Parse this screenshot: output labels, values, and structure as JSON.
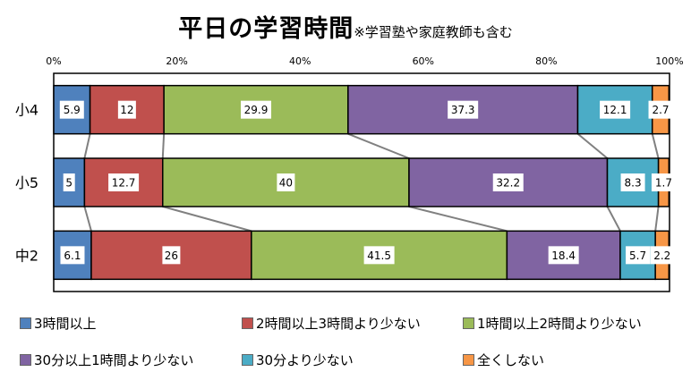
{
  "chart_data": {
    "type": "bar",
    "orientation": "horizontal",
    "stacked": true,
    "percent": true,
    "title": "平日の学習時間",
    "subtitle": "※学習塾や家庭教師も含む",
    "categories": [
      "小4",
      "小5",
      "中2"
    ],
    "xlim": [
      0,
      100
    ],
    "x_ticks": [
      "0%",
      "20%",
      "40%",
      "60%",
      "80%",
      "100%"
    ],
    "x_axis_position": "top",
    "grid": false,
    "legend_position": "bottom",
    "series_connectors": true,
    "series": [
      {
        "name": "3時間以上",
        "color": "#4f81bd",
        "values": [
          5.9,
          5,
          6.1
        ]
      },
      {
        "name": "2時間以上3時間より少ない",
        "color": "#c0504d",
        "values": [
          12,
          12.7,
          26
        ]
      },
      {
        "name": "1時間以上2時間より少ない",
        "color": "#9bbb59",
        "values": [
          29.9,
          40,
          41.5
        ]
      },
      {
        "name": "30分以上1時間より少ない",
        "color": "#8064a2",
        "values": [
          37.3,
          32.2,
          18.4
        ]
      },
      {
        "name": "30分より少ない",
        "color": "#4bacc6",
        "values": [
          12.1,
          8.3,
          5.7
        ]
      },
      {
        "name": "全くしない",
        "color": "#f79646",
        "values": [
          2.7,
          1.7,
          2.2
        ]
      }
    ]
  }
}
